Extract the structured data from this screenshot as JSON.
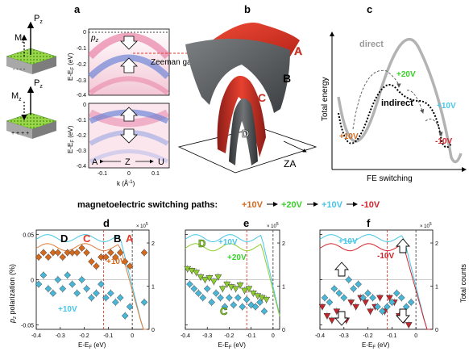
{
  "panel_letters": {
    "a": "a",
    "b": "b",
    "c": "c",
    "d": "d",
    "e": "e",
    "f": "f"
  },
  "device_labels": {
    "m": "M",
    "m_sub": "z",
    "p": "P",
    "p_sub": "z"
  },
  "panel_a": {
    "top_tag": "p",
    "top_tag_sub": "z",
    "ylabel_top": "E-E",
    "ylabel_bottom": "E-E",
    "ylabel_sub": "F",
    "ylabel_unit": "(eV)",
    "xlabel": "k (Å",
    "xlabel_sup": "-1",
    "xlabel_close": ")",
    "zeeman_label": "Zeeman gap",
    "yticks": [
      "0",
      "-0.1",
      "-0.2",
      "-0.3",
      "-0.4"
    ],
    "xticks": [
      "-0.1",
      "0",
      "0.1"
    ],
    "path_labels": [
      "A",
      "Z",
      "U"
    ]
  },
  "panel_b": {
    "band_labels": [
      "A",
      "B",
      "C",
      "D"
    ],
    "axis_label": "ZA",
    "band_colors": {
      "A": "#e03a2c",
      "B": "#5e6163",
      "C": "#c93127",
      "D": "#3f4244"
    }
  },
  "panel_c": {
    "ylabel": "Total energy",
    "xlabel": "FE switching",
    "direct_label": "direct",
    "indirect_label": "indirect",
    "v_labels": {
      "p10": "+10V",
      "p20": "+20V",
      "p10b": "+10V",
      "m10": "-10V"
    }
  },
  "switching_paths": {
    "label": "magnetoelectric switching paths:",
    "steps": [
      "+10V",
      "+20V",
      "+10V",
      "-10V"
    ],
    "colors": [
      "#d2691e",
      "#39d12a",
      "#47c6e8",
      "#d4242b"
    ]
  },
  "bottom_axes": {
    "ylabel_left": "polarization (%)",
    "ylabel_left_prefix": "p",
    "ylabel_left_sub": "z",
    "ylabel_right": "Total counts",
    "xlabel": "E-E",
    "xlabel_sub": "F",
    "xlabel_unit": "(eV)",
    "left_ticks": [
      "0.05",
      "0",
      "-0.05"
    ],
    "right_ticks": [
      "2",
      "1",
      "0"
    ],
    "x_ticks": [
      "-0.4",
      "-0.3",
      "-0.2",
      "-0.1",
      "0"
    ],
    "x_ticks_f": [
      "-0.4",
      "-0.3",
      "-0.2",
      "-0.1",
      "0"
    ],
    "exp_label": "× 10",
    "exp_sup": "5"
  },
  "panel_d": {
    "label_D": "D",
    "label_C": "C",
    "label_B": "B",
    "label_A": "A",
    "label_p10": "+10V",
    "label_p10_blue": "+10V"
  },
  "panel_e": {
    "label_D": "D",
    "label_C": "C",
    "label_p10": "+10V",
    "label_p20": "+20V"
  },
  "panel_f": {
    "label_p10": "+10V",
    "label_m10": "-10V"
  },
  "chart_data": [
    {
      "type": "scatter",
      "panel": "d",
      "xlim": [
        -0.4,
        0.07
      ],
      "ylim": [
        -0.055,
        0.055
      ],
      "series": [
        {
          "name": "+10V",
          "color": "#d2691e",
          "marker": "diamond",
          "x": [
            -0.39,
            -0.37,
            -0.35,
            -0.33,
            -0.31,
            -0.29,
            -0.27,
            -0.25,
            -0.23,
            -0.21,
            -0.19,
            -0.17,
            -0.15,
            -0.13,
            -0.11,
            -0.09,
            -0.07,
            -0.05,
            -0.03,
            -0.01,
            0.05
          ],
          "y": [
            0.025,
            0.03,
            0.025,
            0.03,
            0.03,
            0.025,
            0.03,
            0.03,
            0.03,
            0.035,
            0.03,
            0.02,
            0.015,
            0.025,
            0.025,
            0.03,
            0.025,
            0.03,
            0.02,
            0.015,
            0.03
          ]
        },
        {
          "name": "+10V",
          "color": "#49b6d8",
          "marker": "diamond",
          "x": [
            -0.39,
            -0.37,
            -0.35,
            -0.33,
            -0.31,
            -0.29,
            -0.27,
            -0.25,
            -0.23,
            -0.21,
            -0.19,
            -0.17,
            -0.15,
            -0.13,
            -0.11,
            -0.09,
            -0.07,
            -0.05,
            -0.03,
            -0.01,
            0.05
          ],
          "y": [
            -0.005,
            0.005,
            -0.01,
            -0.015,
            0.0,
            -0.01,
            0.005,
            -0.005,
            -0.015,
            0.0,
            -0.01,
            -0.02,
            -0.015,
            -0.005,
            -0.02,
            -0.015,
            -0.025,
            -0.02,
            -0.04,
            -0.03,
            -0.025
          ]
        }
      ]
    },
    {
      "type": "scatter",
      "panel": "e",
      "xlim": [
        -0.4,
        0.03
      ],
      "ylim": [
        -0.055,
        0.055
      ],
      "series": [
        {
          "name": "+20V",
          "color": "#8ecf2e",
          "marker": "triangle-down",
          "x": [
            -0.39,
            -0.37,
            -0.35,
            -0.33,
            -0.31,
            -0.29,
            -0.27,
            -0.25,
            -0.23,
            -0.21,
            -0.19,
            -0.17,
            -0.15,
            -0.13,
            -0.11,
            -0.09,
            -0.07,
            -0.05,
            -0.03
          ],
          "y": [
            0.012,
            0.01,
            0.008,
            0.003,
            0.0,
            0.002,
            -0.002,
            0.003,
            -0.01,
            -0.005,
            -0.008,
            -0.01,
            -0.006,
            -0.012,
            -0.01,
            -0.015,
            -0.018,
            -0.02,
            -0.022
          ]
        },
        {
          "name": "+10V",
          "color": "#49b6d8",
          "marker": "diamond",
          "x": [
            -0.38,
            -0.36,
            -0.34,
            -0.32,
            -0.3,
            -0.28,
            -0.26,
            -0.24,
            -0.22,
            -0.2,
            -0.18,
            -0.16,
            -0.14,
            -0.12,
            -0.1,
            -0.08,
            -0.06,
            -0.04
          ],
          "y": [
            -0.005,
            -0.01,
            -0.015,
            -0.02,
            -0.01,
            -0.025,
            -0.015,
            -0.02,
            -0.03,
            -0.02,
            -0.028,
            -0.02,
            -0.03,
            -0.022,
            -0.028,
            -0.03,
            -0.025,
            -0.035
          ]
        }
      ]
    },
    {
      "type": "scatter",
      "panel": "f",
      "xlim": [
        -0.4,
        0.07
      ],
      "ylim": [
        -0.055,
        0.055
      ],
      "series": [
        {
          "name": "-10V",
          "color": "#c0262c",
          "marker": "triangle-down",
          "x": [
            -0.39,
            -0.37,
            -0.35,
            -0.33,
            -0.31,
            -0.29,
            -0.27,
            -0.25,
            -0.23,
            -0.21,
            -0.19,
            -0.17,
            -0.15,
            -0.13,
            -0.11,
            -0.09,
            -0.07,
            -0.05,
            -0.03
          ],
          "y": [
            -0.03,
            -0.04,
            -0.045,
            -0.035,
            -0.04,
            -0.045,
            -0.025,
            -0.03,
            -0.02,
            -0.025,
            -0.035,
            -0.03,
            -0.02,
            -0.035,
            -0.02,
            -0.025,
            -0.04,
            -0.045,
            -0.05
          ]
        },
        {
          "name": "+10V",
          "color": "#49b6d8",
          "marker": "diamond",
          "x": [
            -0.38,
            -0.36,
            -0.34,
            -0.32,
            -0.3,
            -0.28,
            -0.26,
            -0.24,
            -0.22,
            -0.2,
            -0.18,
            -0.16,
            -0.14,
            -0.12,
            -0.1,
            -0.08,
            -0.06,
            -0.04,
            -0.02
          ],
          "y": [
            -0.02,
            -0.025,
            -0.01,
            -0.015,
            -0.02,
            0.0,
            -0.01,
            -0.005,
            -0.02,
            -0.015,
            -0.02,
            -0.03,
            -0.035,
            -0.03,
            -0.025,
            -0.015,
            -0.02,
            -0.03,
            -0.025
          ]
        }
      ]
    }
  ]
}
